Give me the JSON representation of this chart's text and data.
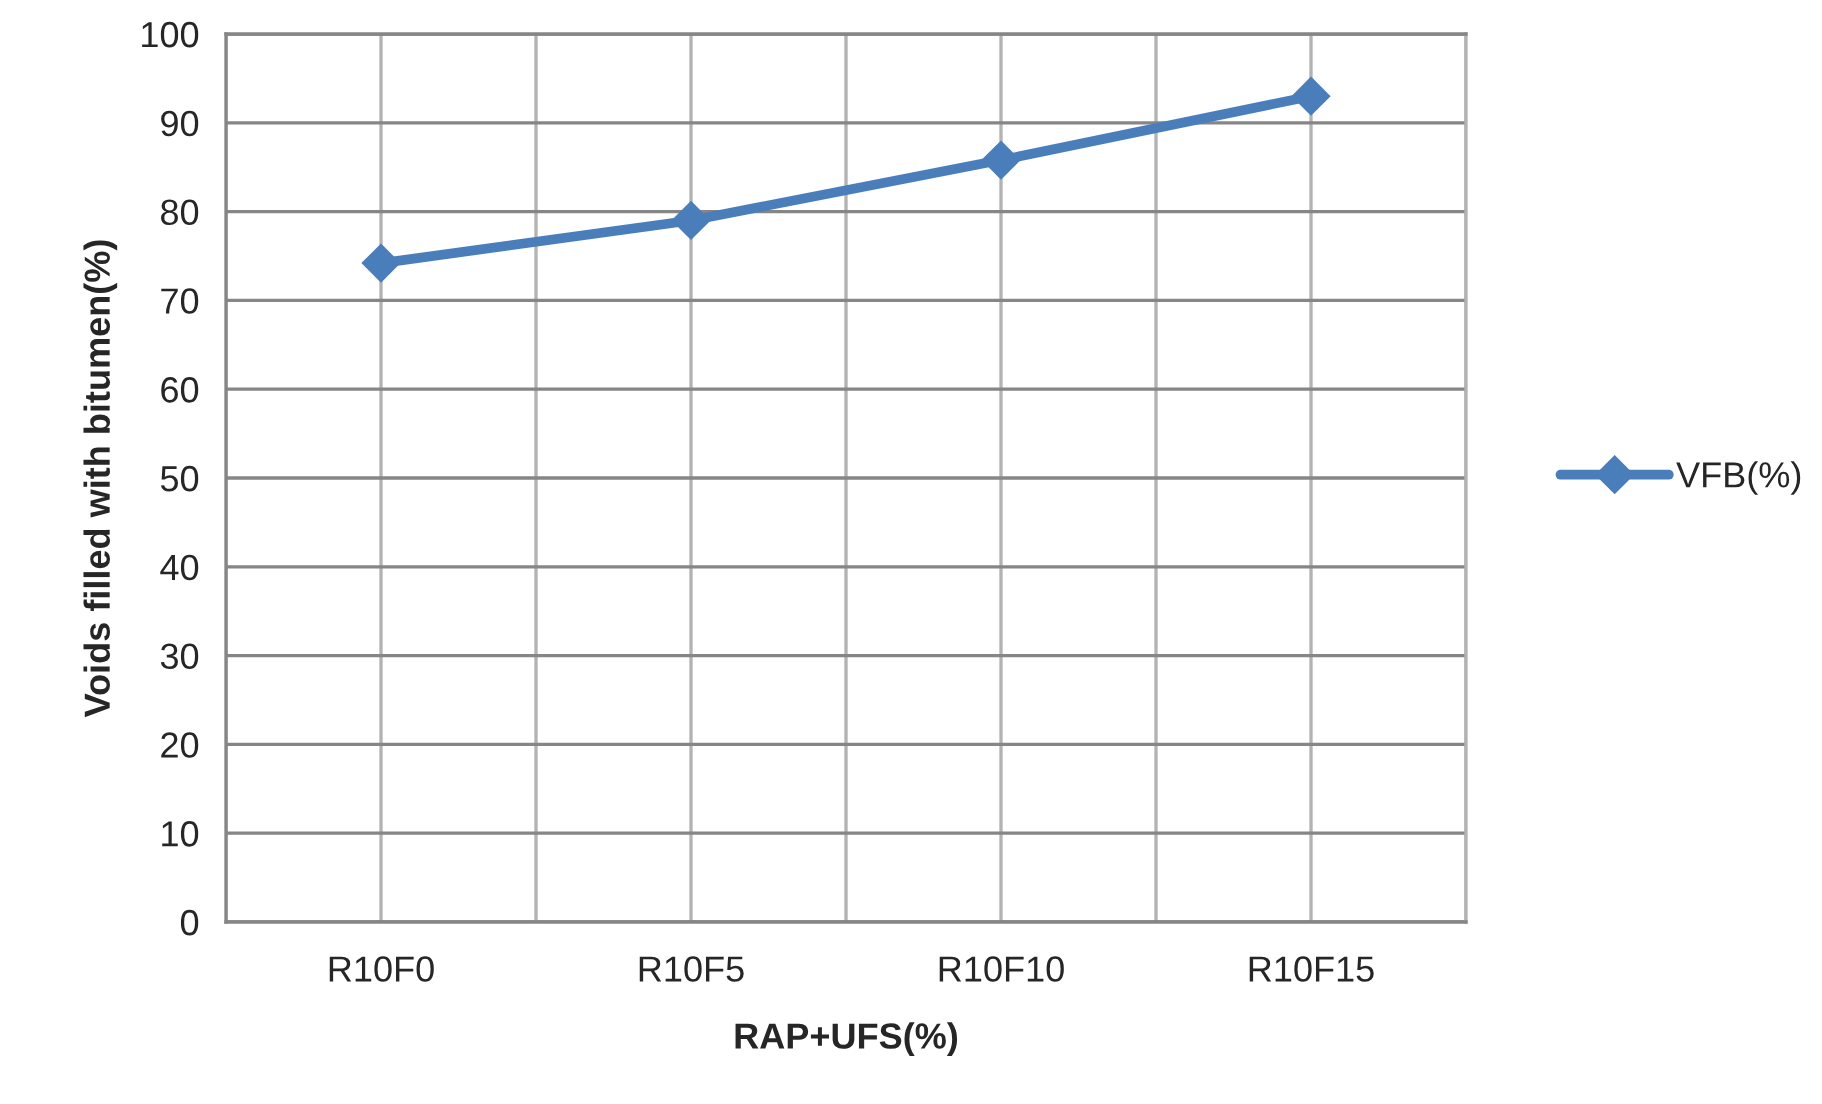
{
  "chart_data": {
    "type": "line",
    "xlabel": "RAP+UFS(%)",
    "ylabel": "Voids filled with bitumen(%)",
    "categories": [
      "R10F0",
      "R10F5",
      "R10F10",
      "R10F15"
    ],
    "series": [
      {
        "name": "VFB(%)",
        "color": "#4a7ebb",
        "values": [
          74.2,
          79.0,
          85.8,
          93.0
        ]
      }
    ],
    "ylim": [
      0,
      100
    ],
    "yticks": [
      0,
      10,
      20,
      30,
      40,
      50,
      60,
      70,
      80,
      90,
      100
    ],
    "grid": true,
    "legend": "right",
    "marker": "diamond",
    "line_style": "solid"
  }
}
